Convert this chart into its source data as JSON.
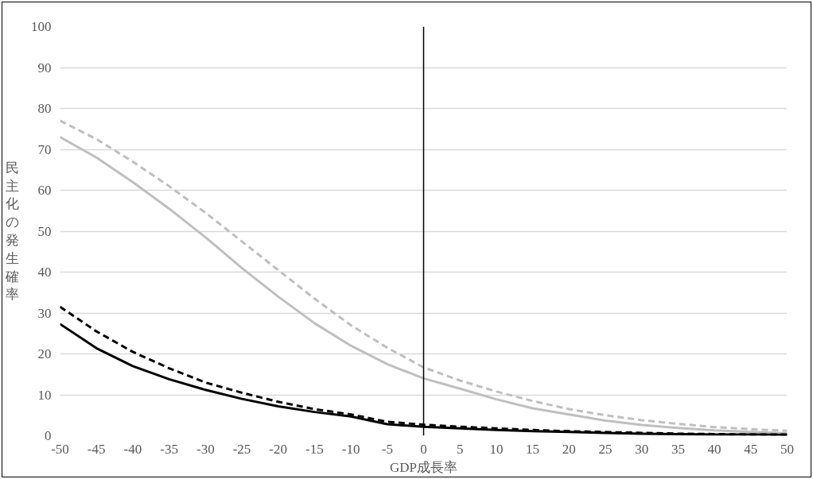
{
  "chart_data": {
    "type": "line",
    "xlabel": "GDP成長率",
    "ylabel": "民主化の発生確率",
    "x": [
      -50,
      -45,
      -40,
      -35,
      -30,
      -25,
      -20,
      -15,
      -10,
      -5,
      0,
      5,
      10,
      15,
      20,
      25,
      30,
      35,
      40,
      45,
      50
    ],
    "series": [
      {
        "color": "#bfbfbf",
        "line_style": "dashed",
        "values": [
          77,
          72.5,
          67,
          61,
          54.5,
          47.5,
          40.5,
          33.5,
          27,
          21.5,
          16.7,
          13.5,
          10.8,
          8.5,
          6.5,
          5,
          3.8,
          2.9,
          2.1,
          1.6,
          1.2
        ]
      },
      {
        "color": "#bfbfbf",
        "line_style": "solid",
        "values": [
          73,
          68,
          62,
          55.5,
          48.5,
          41,
          34,
          27.5,
          22,
          17.5,
          14,
          11.5,
          8.9,
          6.7,
          5.2,
          3.7,
          2.6,
          1.9,
          1.3,
          0.9,
          0.6
        ]
      },
      {
        "color": "#000000",
        "line_style": "dashed",
        "values": [
          31.5,
          25.5,
          20.5,
          16.5,
          13,
          10.5,
          8.3,
          6.5,
          5.2,
          3.4,
          2.7,
          2.2,
          1.8,
          1.4,
          1.1,
          0.9,
          0.7,
          0.5,
          0.4,
          0.3,
          0.3
        ]
      },
      {
        "color": "#000000",
        "line_style": "solid",
        "values": [
          27.3,
          21.4,
          17,
          13.8,
          11.2,
          9,
          7.2,
          5.8,
          4.7,
          2.8,
          2.2,
          1.8,
          1.4,
          1.1,
          0.9,
          0.7,
          0.5,
          0.4,
          0.3,
          0.3,
          0.2
        ]
      }
    ],
    "xlim": [
      -50,
      50
    ],
    "xticks": [
      -50,
      -45,
      -40,
      -35,
      -30,
      -25,
      -20,
      -15,
      -10,
      -5,
      0,
      5,
      10,
      15,
      20,
      25,
      30,
      35,
      40,
      45,
      50
    ],
    "ylim": [
      0,
      100
    ],
    "yticks": [
      0,
      10,
      20,
      30,
      40,
      50,
      60,
      70,
      80,
      90,
      100
    ],
    "grid": "y",
    "marker": "none",
    "ref_lines": [
      {
        "axis": "x",
        "value": 0,
        "color": "#000000"
      }
    ]
  }
}
